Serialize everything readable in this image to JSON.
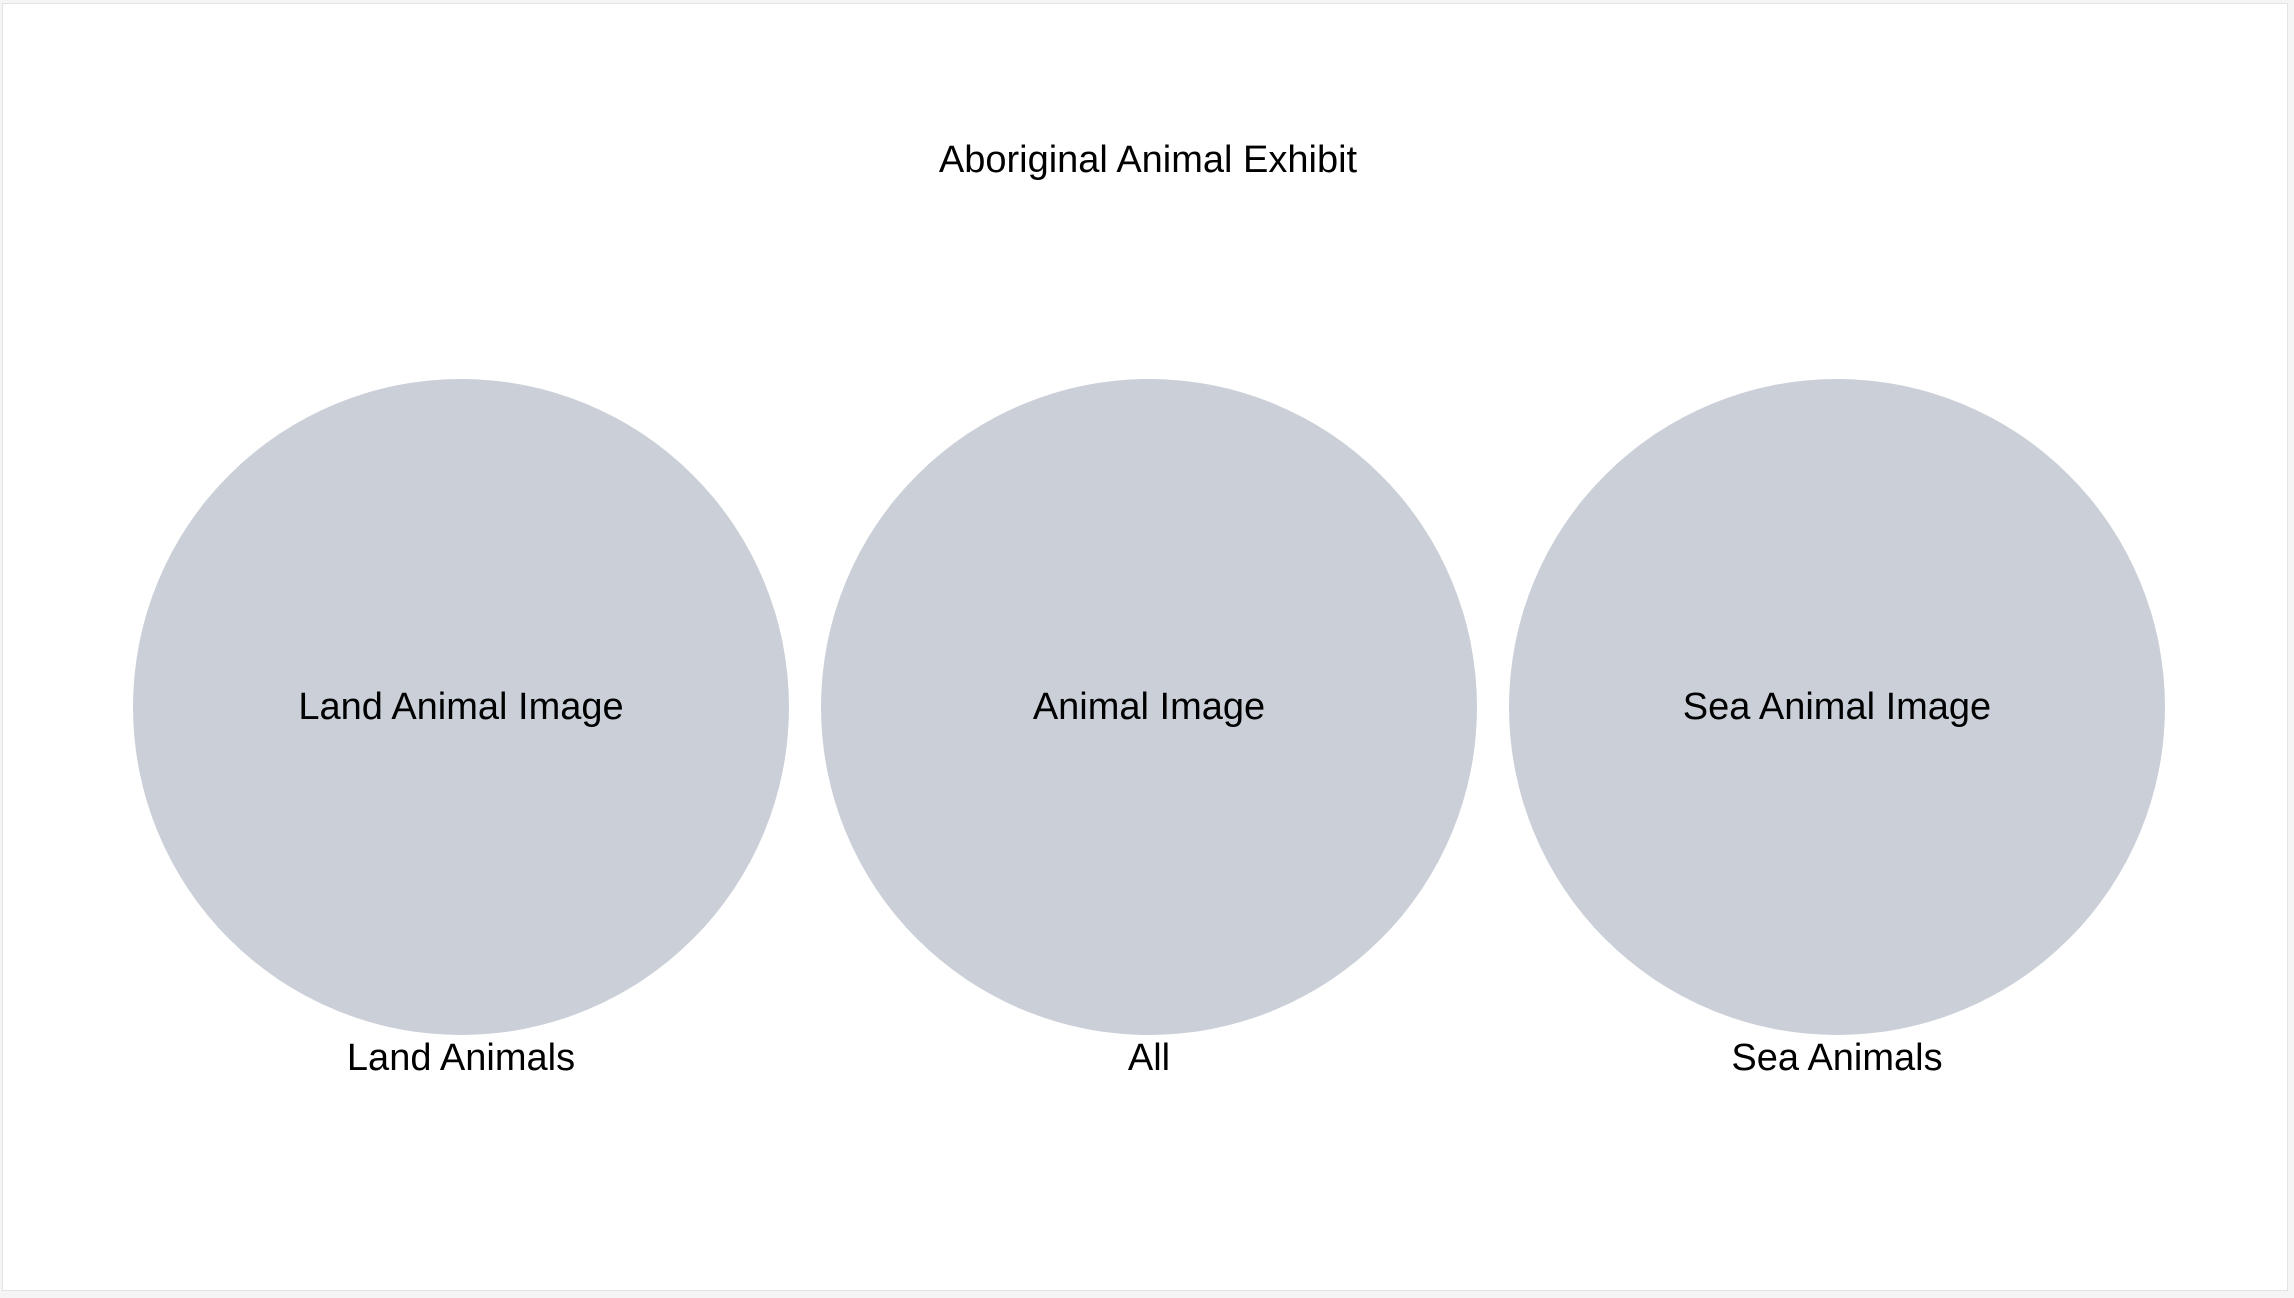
{
  "page": {
    "title": "Aboriginal Animal Exhibit"
  },
  "categories": [
    {
      "image_text": "Land Animal Image",
      "label": "Land Animals"
    },
    {
      "image_text": "Animal Image",
      "label": "All"
    },
    {
      "image_text": "Sea Animal Image",
      "label": "Sea Animals"
    }
  ],
  "colors": {
    "circle_fill": "#cacfd8",
    "text": "#000000",
    "background": "#ffffff"
  }
}
